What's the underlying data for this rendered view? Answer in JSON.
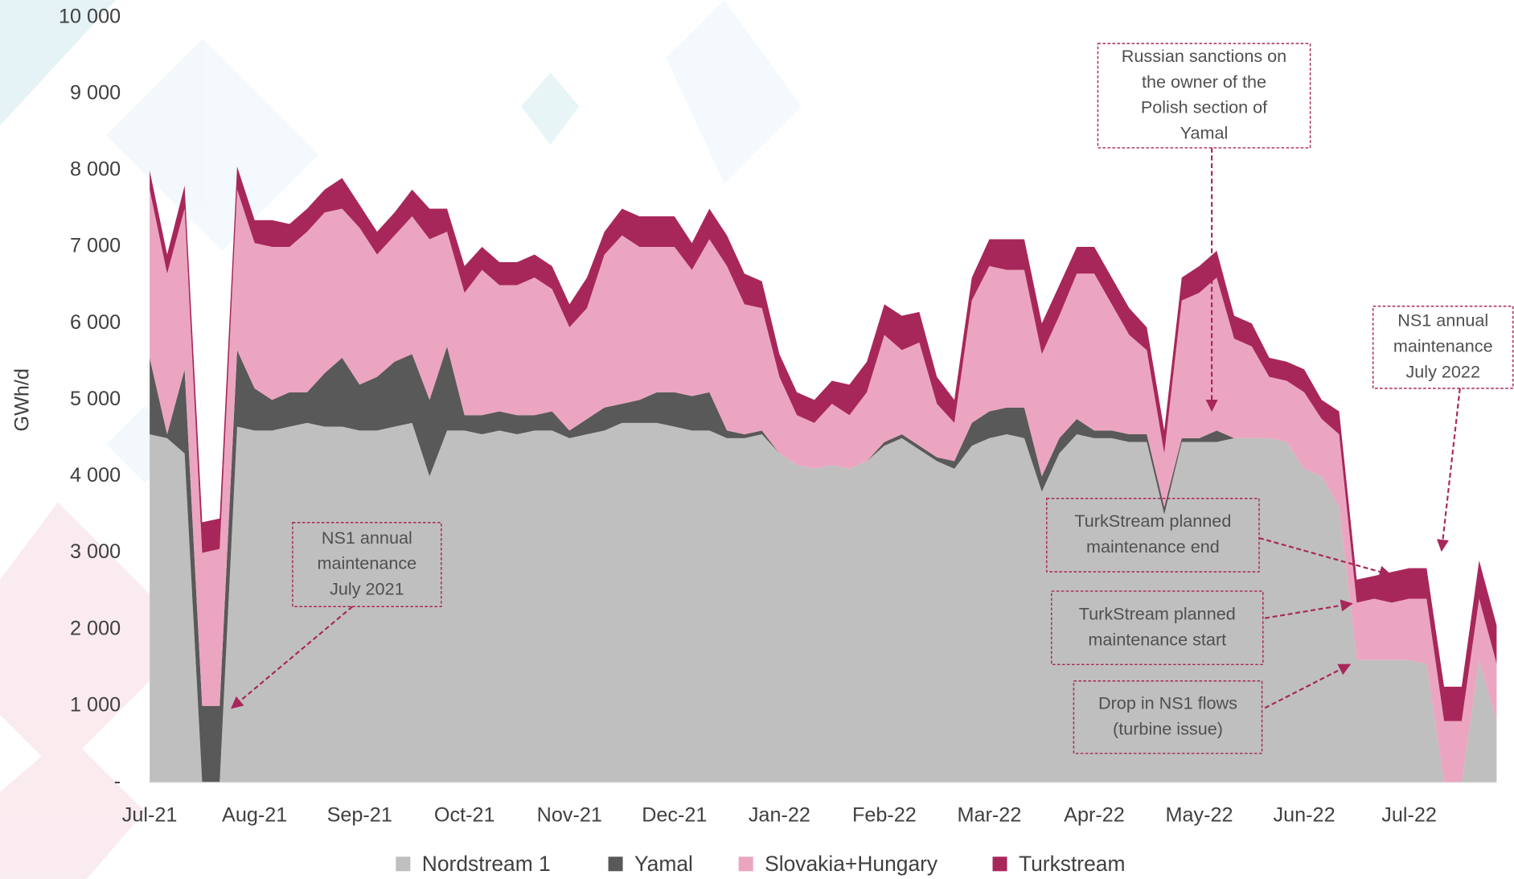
{
  "chart_data": {
    "type": "stacked_area",
    "y_label": "GWh/d",
    "categories": [
      "Jul-21",
      null,
      null,
      null,
      null,
      null,
      "Aug-21",
      null,
      null,
      null,
      null,
      null,
      "Sep-21",
      null,
      null,
      null,
      null,
      null,
      "Oct-21",
      null,
      null,
      null,
      null,
      null,
      "Nov-21",
      null,
      null,
      null,
      null,
      null,
      "Dec-21",
      null,
      null,
      null,
      null,
      null,
      "Jan-22",
      null,
      null,
      null,
      null,
      null,
      "Feb-22",
      null,
      null,
      null,
      null,
      null,
      "Mar-22",
      null,
      null,
      null,
      null,
      null,
      "Apr-22",
      null,
      null,
      null,
      null,
      null,
      "May-22",
      null,
      null,
      null,
      null,
      null,
      "Jun-22",
      null,
      null,
      null,
      null,
      null,
      "Jul-22",
      null,
      null,
      null,
      null,
      null
    ],
    "series": [
      {
        "name": "Nordstream 1",
        "color": "#bfbfbf",
        "values": [
          4550,
          4500,
          4300,
          0,
          0,
          4650,
          4600,
          4600,
          4650,
          4700,
          4650,
          4650,
          4600,
          4600,
          4650,
          4700,
          4000,
          4600,
          4600,
          4550,
          4600,
          4550,
          4600,
          4600,
          4500,
          4550,
          4600,
          4700,
          4700,
          4700,
          4650,
          4600,
          4600,
          4500,
          4500,
          4550,
          4300,
          4150,
          4100,
          4150,
          4100,
          4200,
          4400,
          4500,
          4350,
          4200,
          4100,
          4400,
          4500,
          4550,
          4500,
          3800,
          4300,
          4550,
          4500,
          4500,
          4450,
          4450,
          3500,
          4450,
          4450,
          4450,
          4500,
          4500,
          4500,
          4450,
          4100,
          4000,
          3600,
          1600,
          1600,
          1600,
          1600,
          1550,
          0,
          0,
          1600,
          800
        ]
      },
      {
        "name": "Yamal",
        "color": "#595959",
        "values": [
          1000,
          50,
          1100,
          1000,
          1000,
          1000,
          550,
          400,
          450,
          400,
          700,
          900,
          600,
          700,
          850,
          900,
          1000,
          1100,
          200,
          250,
          250,
          250,
          200,
          250,
          100,
          200,
          300,
          250,
          300,
          400,
          450,
          450,
          500,
          100,
          50,
          50,
          0,
          0,
          0,
          0,
          0,
          0,
          50,
          50,
          50,
          50,
          100,
          300,
          350,
          350,
          400,
          200,
          200,
          200,
          100,
          100,
          100,
          100,
          100,
          50,
          50,
          150,
          0,
          0,
          0,
          0,
          0,
          0,
          0,
          0,
          0,
          0,
          0,
          0,
          0,
          0,
          0,
          0
        ]
      },
      {
        "name": "Slovakia+Hungary",
        "color": "#eba5c0",
        "values": [
          2200,
          2100,
          2100,
          2000,
          2050,
          2100,
          1900,
          2000,
          1900,
          2100,
          2100,
          1950,
          2050,
          1600,
          1650,
          1800,
          2100,
          1500,
          1600,
          1900,
          1650,
          1700,
          1800,
          1600,
          1350,
          1450,
          2000,
          2200,
          2000,
          1900,
          1900,
          1650,
          2000,
          2150,
          1700,
          1600,
          1000,
          650,
          600,
          800,
          700,
          900,
          1400,
          1100,
          1350,
          700,
          500,
          1600,
          1900,
          1800,
          1800,
          1600,
          1600,
          1900,
          2050,
          1650,
          1300,
          1100,
          700,
          1800,
          1900,
          2000,
          1300,
          1200,
          800,
          800,
          1000,
          750,
          950,
          750,
          800,
          750,
          800,
          850,
          800,
          800,
          800,
          750
        ]
      },
      {
        "name": "Turkstream",
        "color": "#a8275a",
        "values": [
          250,
          250,
          300,
          400,
          400,
          300,
          300,
          350,
          300,
          300,
          300,
          400,
          300,
          300,
          300,
          350,
          400,
          300,
          350,
          300,
          300,
          300,
          300,
          300,
          300,
          400,
          300,
          350,
          400,
          400,
          400,
          350,
          400,
          400,
          400,
          350,
          300,
          300,
          300,
          300,
          400,
          400,
          400,
          450,
          400,
          350,
          300,
          300,
          350,
          400,
          400,
          400,
          400,
          350,
          350,
          350,
          350,
          300,
          300,
          300,
          350,
          350,
          300,
          300,
          250,
          250,
          300,
          250,
          300,
          300,
          300,
          400,
          400,
          400,
          450,
          450,
          500,
          500
        ]
      }
    ],
    "ylim": [
      0,
      10000
    ],
    "yticks": [
      {
        "value": 0,
        "label": "-"
      },
      {
        "value": 1000,
        "label": "1 000"
      },
      {
        "value": 2000,
        "label": "2 000"
      },
      {
        "value": 3000,
        "label": "3 000"
      },
      {
        "value": 4000,
        "label": "4 000"
      },
      {
        "value": 5000,
        "label": "5 000"
      },
      {
        "value": 6000,
        "label": "6 000"
      },
      {
        "value": 7000,
        "label": "7 000"
      },
      {
        "value": 8000,
        "label": "8 000"
      },
      {
        "value": 9000,
        "label": "9 000"
      },
      {
        "value": 10000,
        "label": "10 000"
      }
    ],
    "grid": false,
    "legend": "bottom",
    "annotations": [
      {
        "text": [
          "NS1 annual",
          "maintenance",
          "July 2021"
        ]
      },
      {
        "text": [
          "Russian sanctions on",
          "the owner of the",
          "Polish section of",
          "Yamal"
        ]
      },
      {
        "text": [
          "NS1 annual",
          "maintenance",
          "July 2022"
        ]
      },
      {
        "text": [
          "TurkStream planned",
          "maintenance end"
        ]
      },
      {
        "text": [
          "TurkStream planned",
          "maintenance start"
        ]
      },
      {
        "text": [
          "Drop in NS1 flows",
          "(turbine issue)"
        ]
      }
    ]
  }
}
